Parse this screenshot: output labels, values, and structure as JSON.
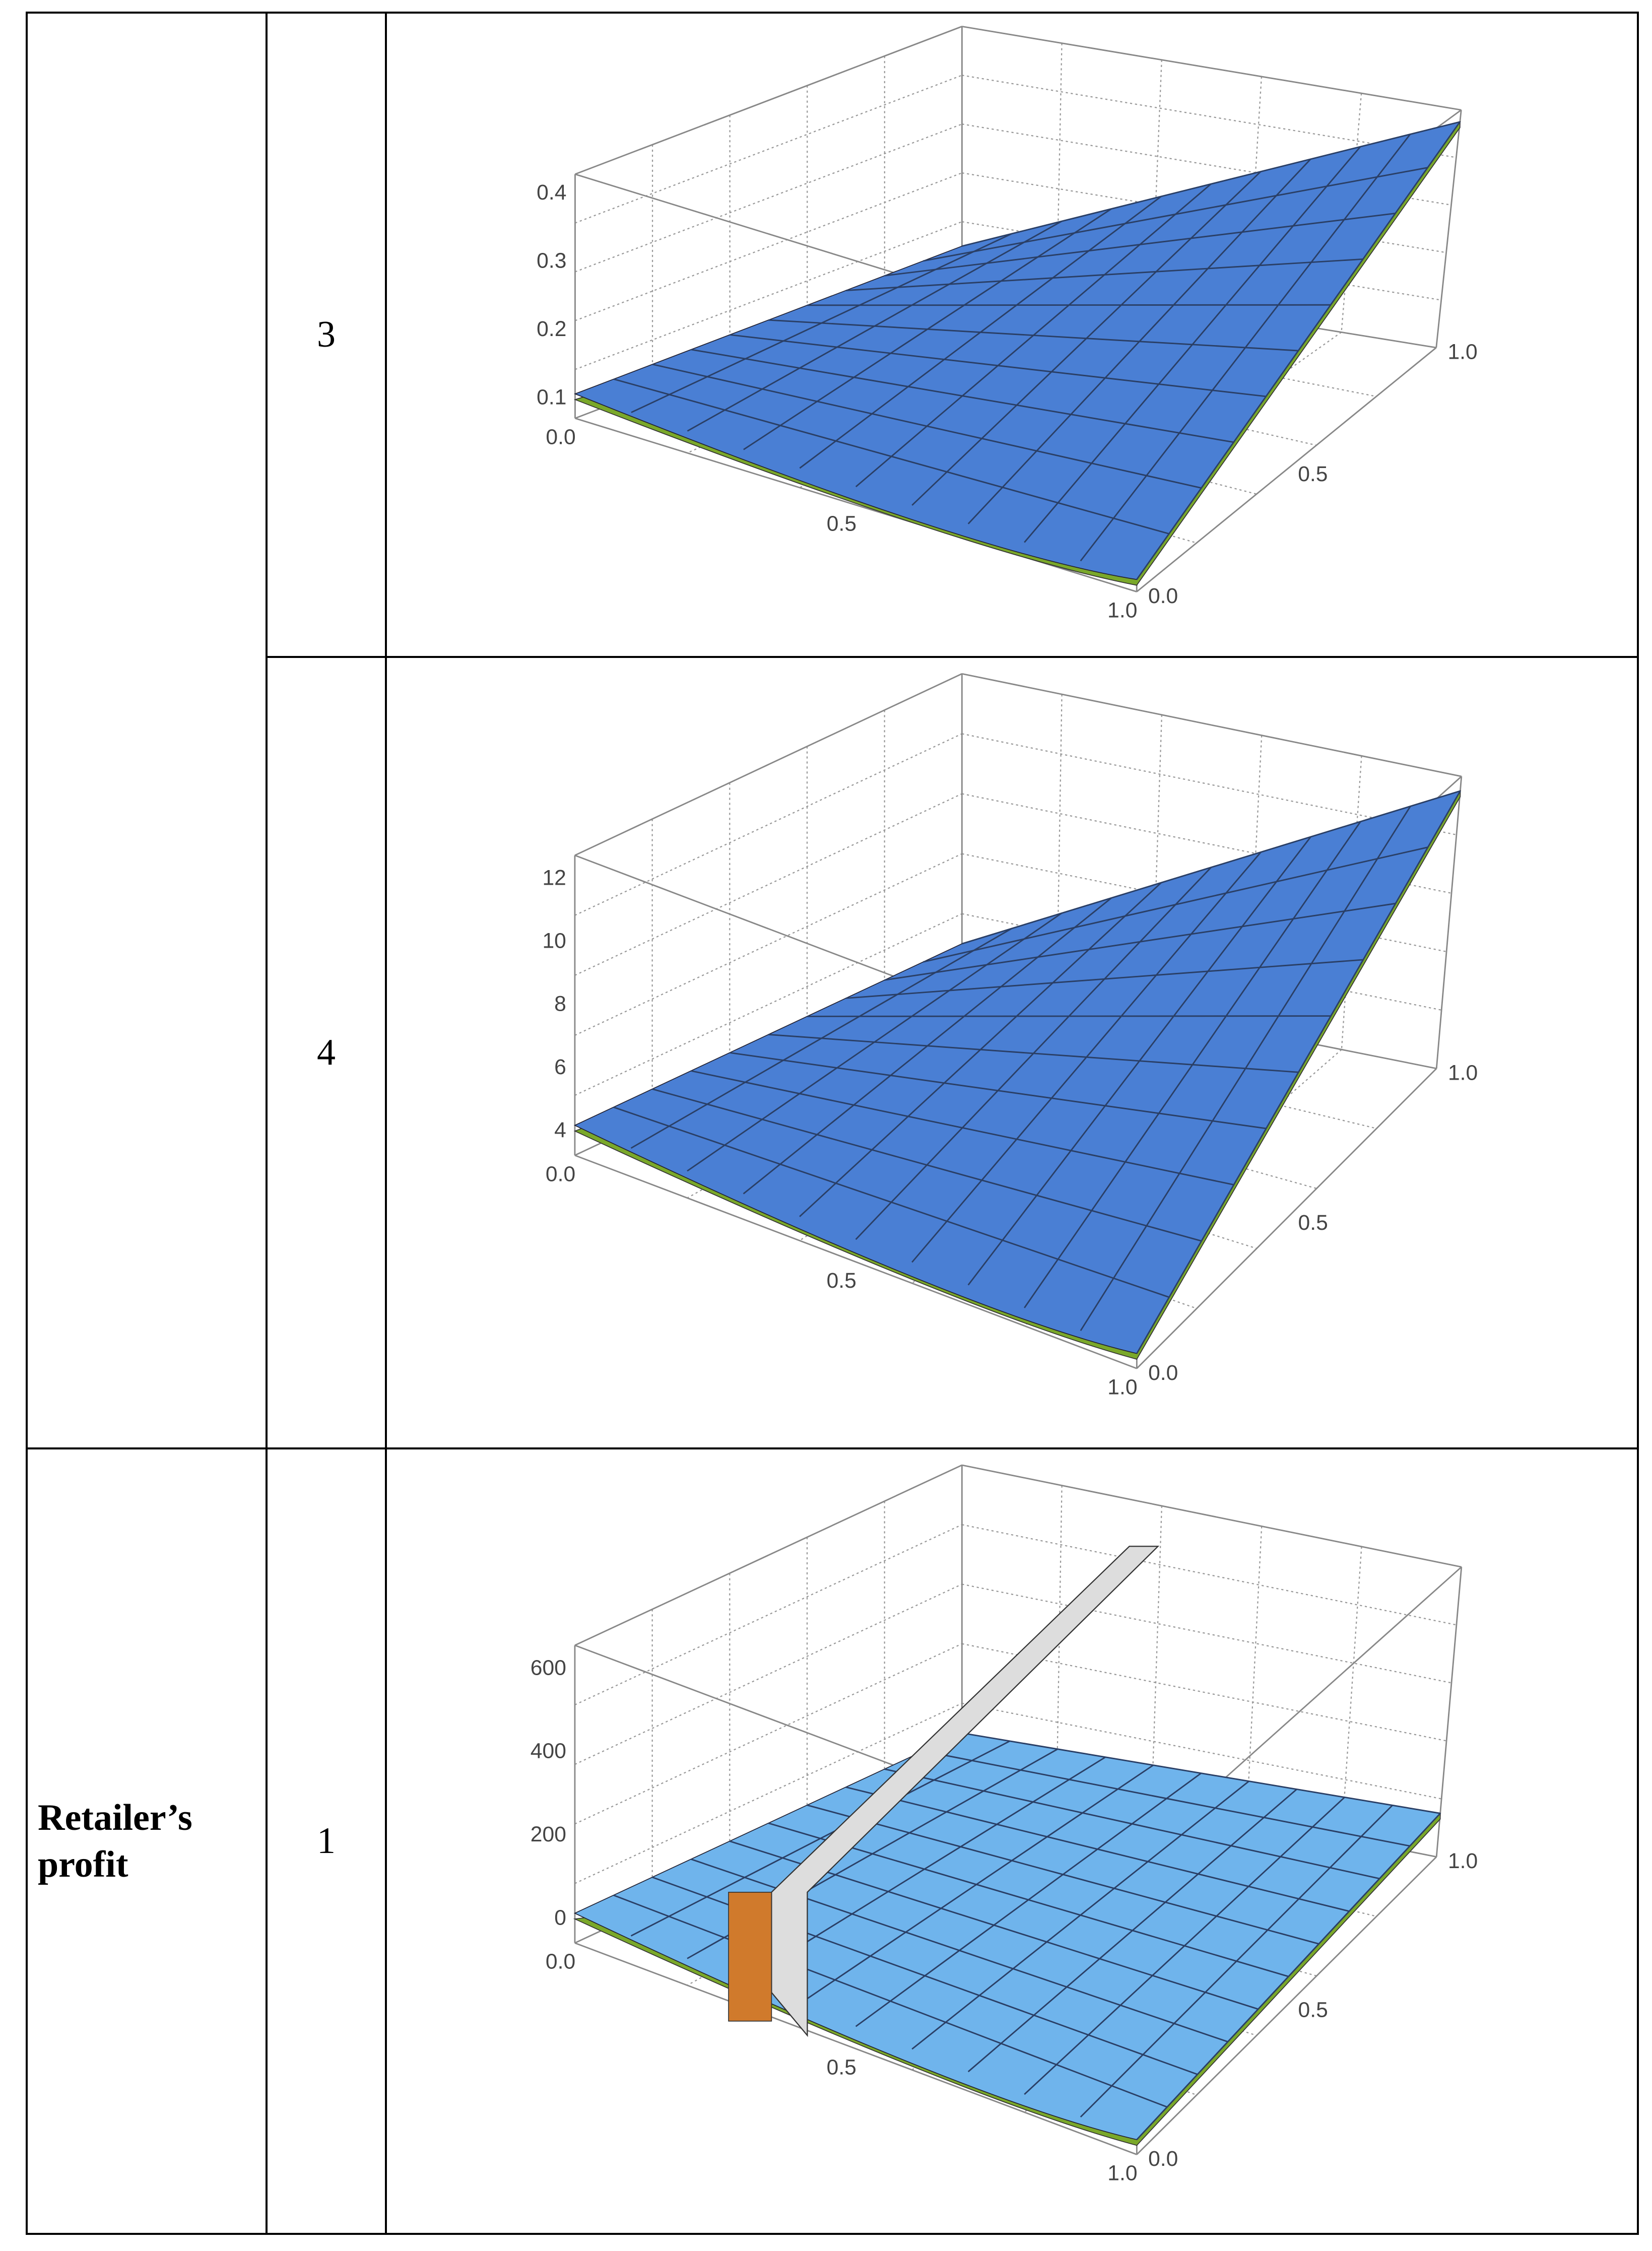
{
  "table": {
    "rows": [
      {
        "index": "3",
        "plot": {
          "z_ticks": [
            "0.1",
            "0.2",
            "0.3",
            "0.4"
          ],
          "x_ticks": [
            "0.0",
            "0.5",
            "1.0"
          ],
          "y_ticks": [
            "0.0",
            "0.5",
            "1.0"
          ]
        }
      },
      {
        "index": "4",
        "plot": {
          "z_ticks": [
            "4",
            "6",
            "8",
            "10",
            "12"
          ],
          "x_ticks": [
            "0.0",
            "0.5",
            "1.0"
          ],
          "y_ticks": [
            "0.0",
            "0.5",
            "1.0"
          ]
        }
      },
      {
        "label": "Retailer’s profit",
        "index": "1",
        "plot": {
          "z_ticks": [
            "0",
            "200",
            "400",
            "600"
          ],
          "x_ticks": [
            "0.0",
            "0.5",
            "1.0"
          ],
          "y_ticks": [
            "0.0",
            "0.5",
            "1.0"
          ]
        }
      }
    ]
  }
}
